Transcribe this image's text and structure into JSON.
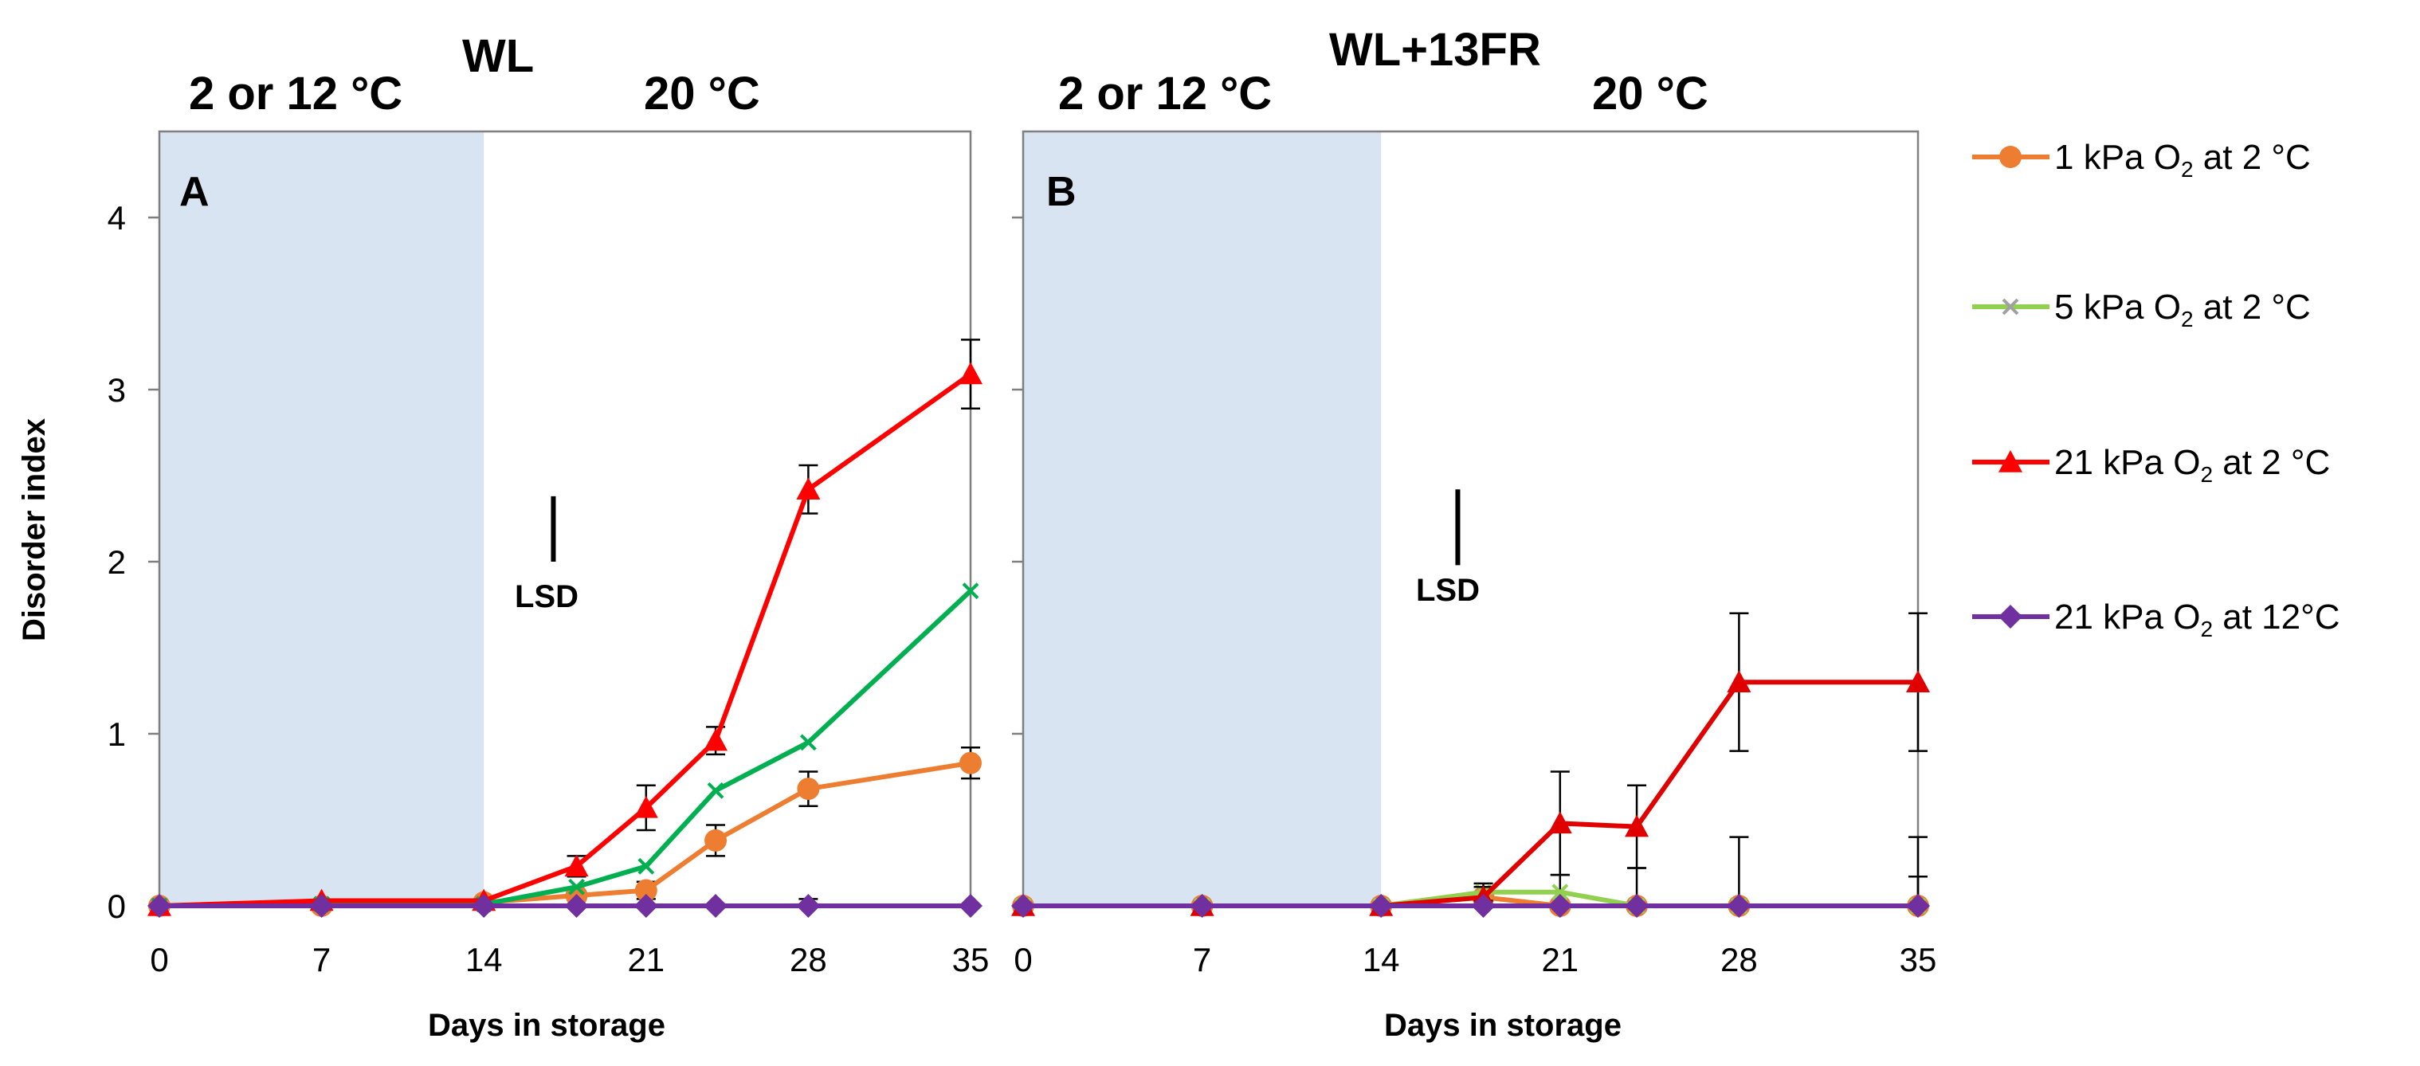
{
  "chart_data": [
    {
      "type": "line",
      "panel_label": "A",
      "title": "WL",
      "phase_labels": [
        "2  or 12 °C",
        "20 °C"
      ],
      "shaded_period_days": [
        0,
        14
      ],
      "xlabel": "Days in storage",
      "ylabel": "Disorder index",
      "xlim": [
        0,
        35
      ],
      "ylim": [
        0,
        4.5
      ],
      "xticks": [
        0,
        7,
        14,
        21,
        28,
        35
      ],
      "yticks": [
        0,
        1,
        2,
        3,
        4
      ],
      "lsd": {
        "label": "LSD",
        "x": 17,
        "y_low": 2.0,
        "y_high": 2.38
      },
      "series": [
        {
          "name": "1  kPa O₂  at 2 °C",
          "color": "#ED7D31",
          "marker": "circle",
          "x": [
            0,
            7,
            14,
            18,
            21,
            24,
            28,
            35
          ],
          "values": [
            0,
            0,
            0.02,
            0.06,
            0.09,
            0.38,
            0.68,
            0.83
          ],
          "err": [
            0,
            0,
            0,
            0,
            0.05,
            0.09,
            0.1,
            0.09
          ]
        },
        {
          "name": "5 kPa O₂   at 2 °C",
          "color": "#00B050",
          "marker": "x",
          "x": [
            0,
            7,
            14,
            18,
            21,
            24,
            28,
            35
          ],
          "values": [
            0,
            0.01,
            0.01,
            0.11,
            0.23,
            0.67,
            0.95,
            1.83
          ],
          "err": [
            0,
            0,
            0,
            0,
            0,
            0,
            0,
            0
          ]
        },
        {
          "name": "21 kPa O₂  at 2 °C",
          "color": "#FF0000",
          "marker": "triangle",
          "x": [
            0,
            7,
            14,
            18,
            21,
            24,
            28,
            35
          ],
          "values": [
            0,
            0.03,
            0.03,
            0.23,
            0.57,
            0.96,
            2.42,
            3.09
          ],
          "err": [
            0,
            0,
            0,
            0.06,
            0.13,
            0.08,
            0.14,
            0.2
          ]
        },
        {
          "name": "21 kPa O₂ at 12°C",
          "color": "#7030A0",
          "marker": "diamond",
          "x": [
            0,
            7,
            14,
            18,
            21,
            24,
            28,
            35
          ],
          "values": [
            0,
            0,
            0,
            0,
            0,
            0,
            0,
            0
          ],
          "err": [
            0,
            0,
            0,
            0,
            0,
            0,
            0.04,
            0
          ]
        }
      ]
    },
    {
      "type": "line",
      "panel_label": "B",
      "title": "WL+13FR",
      "phase_labels": [
        "2  or 12 °C",
        "20 °C"
      ],
      "shaded_period_days": [
        0,
        14
      ],
      "xlabel": "Days in storage",
      "ylabel": "",
      "xlim": [
        0,
        35
      ],
      "ylim": [
        0,
        4.5
      ],
      "xticks": [
        0,
        7,
        14,
        21,
        28,
        35
      ],
      "yticks": [
        0,
        1,
        2,
        3,
        4
      ],
      "lsd": {
        "label": "LSD",
        "x": 17,
        "y_low": 1.98,
        "y_high": 2.42
      },
      "series": [
        {
          "name": "1  kPa O₂  at 2 °C",
          "color": "#ED7D31",
          "marker": "circle",
          "x": [
            0,
            7,
            14,
            18,
            21,
            24,
            28,
            35
          ],
          "values": [
            0,
            0,
            0,
            0.05,
            0,
            0,
            0,
            0
          ],
          "err": [
            0,
            0,
            0,
            0,
            0,
            0,
            0,
            0
          ]
        },
        {
          "name": "5 kPa O₂   at 2 °C",
          "color": "#92D050",
          "marker": "x",
          "x": [
            0,
            7,
            14,
            18,
            21,
            24,
            28,
            35
          ],
          "values": [
            0,
            0,
            0,
            0.08,
            0.08,
            0,
            0,
            0
          ],
          "err": [
            0,
            0,
            0,
            0.05,
            0.1,
            0.22,
            0,
            0.17
          ]
        },
        {
          "name": "21 kPa O₂  at 2 °C",
          "color": "#E00000",
          "marker": "triangle",
          "x": [
            0,
            7,
            14,
            18,
            21,
            24,
            28,
            35
          ],
          "values": [
            0,
            0,
            0,
            0.05,
            0.48,
            0.46,
            1.3,
            1.3
          ],
          "err": [
            0,
            0,
            0,
            0.06,
            0.3,
            0.24,
            0.4,
            0.4
          ]
        },
        {
          "name": "21 kPa O₂ at 12°C",
          "color": "#7030A0",
          "marker": "diamond",
          "x": [
            0,
            7,
            14,
            18,
            21,
            24,
            28,
            35
          ],
          "values": [
            0,
            0,
            0,
            0,
            0,
            0,
            0,
            0
          ],
          "err": [
            0,
            0,
            0,
            0,
            0,
            0,
            0.4,
            0.4
          ]
        }
      ]
    }
  ],
  "legend": {
    "placement": "right",
    "entries": [
      {
        "label": "1  kPa O",
        "sub": "2",
        "suffix": "  at 2 °C",
        "color": "#ED7D31",
        "marker": "circle"
      },
      {
        "label": "5 kPa O",
        "sub": "2",
        "suffix": "   at 2 °C",
        "color": "#92D050",
        "marker": "x"
      },
      {
        "label": "21 kPa O",
        "sub": "2",
        "suffix": "  at 2 °C",
        "color": "#FF0000",
        "marker": "triangle"
      },
      {
        "label": "21 kPa O",
        "sub": "2",
        "suffix": " at 12°C",
        "color": "#7030A0",
        "marker": "diamond"
      }
    ]
  }
}
